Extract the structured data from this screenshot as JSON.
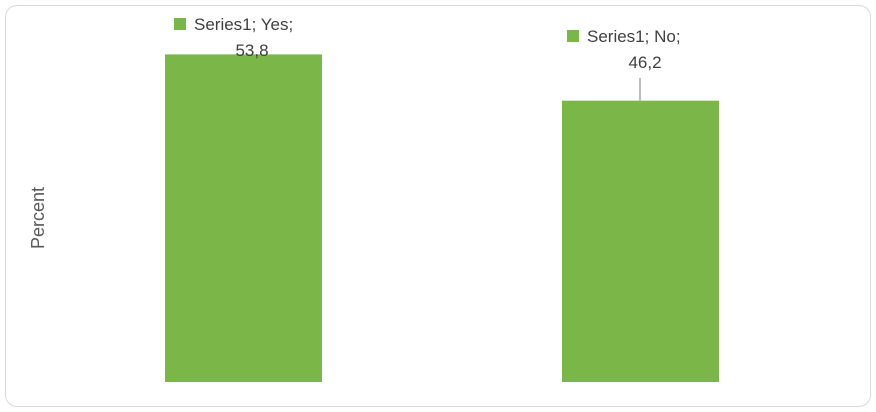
{
  "chart_data": {
    "type": "bar",
    "categories": [
      "Yes",
      "No"
    ],
    "series": [
      {
        "name": "Series1",
        "values": [
          53.8,
          46.2
        ]
      }
    ],
    "data_labels": [
      {
        "line1": "Series1; Yes;",
        "line2": "53,8"
      },
      {
        "line1": "Series1; No;",
        "line2": "46,2"
      }
    ],
    "ylabel": "Percent",
    "xlabel": "",
    "ylim": [
      0,
      56
    ],
    "grid": false,
    "legend": "none",
    "bar_color": "#7ab648",
    "leader_line_color": "#a6a6a6"
  }
}
